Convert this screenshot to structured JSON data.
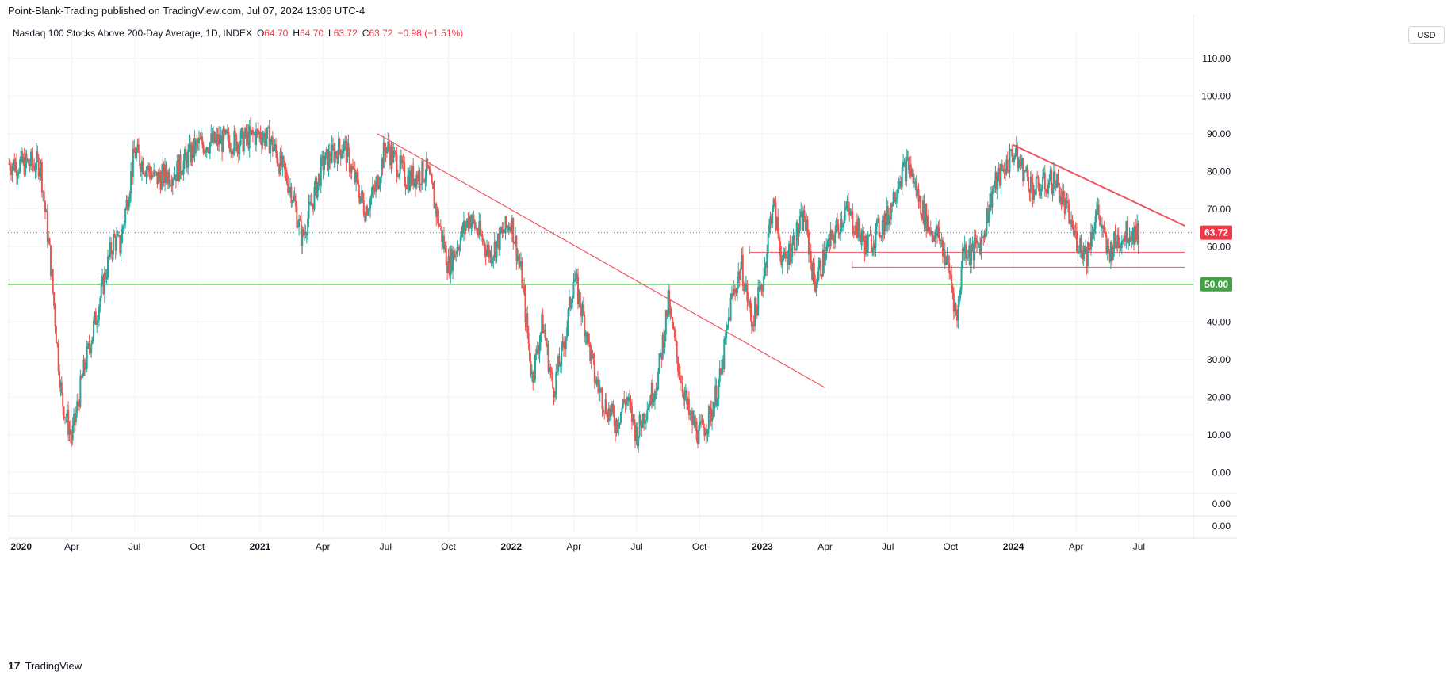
{
  "header": {
    "publisher": "Point-Blank-Trading published on TradingView.com, Jul 07, 2024 13:06 UTC-4"
  },
  "legend": {
    "symbol": "Nasdaq 100 Stocks Above 200-Day Average, 1D, INDEX",
    "open_label": "O",
    "open": "64.70",
    "high_label": "H",
    "high": "64.70",
    "low_label": "L",
    "low": "63.72",
    "close_label": "C",
    "close": "63.72",
    "change": "−0.98 (−1.51%)"
  },
  "currency_button": "USD",
  "brand": {
    "logo": "17",
    "name": "TradingView"
  },
  "colors": {
    "up": "#26a69a",
    "down": "#ef5350",
    "trend": "#f23645",
    "support": "#43a047",
    "last_price": "#f23645",
    "grid": "#f0f3fa"
  },
  "chart_data": {
    "type": "line",
    "title": "Nasdaq 100 Stocks Above 200-Day Average, 1D, INDEX",
    "xlabel": "",
    "ylabel": "",
    "ylim": [
      -5,
      115
    ],
    "y_ticks": [
      "110.00",
      "100.00",
      "90.00",
      "80.00",
      "70.00",
      "60.00",
      "40.00",
      "30.00",
      "20.00",
      "10.00",
      "0.00"
    ],
    "x_ticks": [
      {
        "label": "2020",
        "t": 0,
        "bold": true
      },
      {
        "label": "Apr",
        "t": 3,
        "bold": false
      },
      {
        "label": "Jul",
        "t": 6,
        "bold": false
      },
      {
        "label": "Oct",
        "t": 9,
        "bold": false
      },
      {
        "label": "2021",
        "t": 12,
        "bold": true
      },
      {
        "label": "Apr",
        "t": 15,
        "bold": false
      },
      {
        "label": "Jul",
        "t": 18,
        "bold": false
      },
      {
        "label": "Oct",
        "t": 21,
        "bold": false
      },
      {
        "label": "2022",
        "t": 24,
        "bold": true
      },
      {
        "label": "Apr",
        "t": 27,
        "bold": false
      },
      {
        "label": "Jul",
        "t": 30,
        "bold": false
      },
      {
        "label": "Oct",
        "t": 33,
        "bold": false
      },
      {
        "label": "2023",
        "t": 36,
        "bold": true
      },
      {
        "label": "Apr",
        "t": 39,
        "bold": false
      },
      {
        "label": "Jul",
        "t": 42,
        "bold": false
      },
      {
        "label": "Oct",
        "t": 45,
        "bold": false
      },
      {
        "label": "2024",
        "t": 48,
        "bold": true
      },
      {
        "label": "Apr",
        "t": 51,
        "bold": false
      },
      {
        "label": "Jul",
        "t": 54,
        "bold": false
      }
    ],
    "series": [
      {
        "name": "Nasdaq 100 Stocks Above 200-Day Average",
        "t": [
          0,
          1.5,
          2.0,
          2.5,
          3.0,
          3.5,
          4.5,
          5.0,
          5.3,
          6.0,
          7.0,
          8.0,
          9.0,
          10.0,
          11.0,
          12.0,
          12.5,
          13.5,
          14.0,
          15.0,
          16.0,
          17.0,
          17.5,
          18.0,
          19.0,
          20.0,
          21.0,
          22.0,
          23.0,
          24.0,
          24.5,
          25.0,
          25.5,
          26.0,
          26.5,
          27.0,
          27.5,
          28.0,
          28.5,
          29.0,
          29.5,
          30.0,
          30.5,
          31.0,
          31.5,
          32.0,
          32.5,
          33.0,
          33.5,
          34.0,
          34.5,
          35.0,
          35.5,
          36.0,
          36.5,
          37.0,
          38.0,
          38.5,
          39.0,
          40.0,
          41.0,
          42.0,
          42.5,
          43.0,
          43.5,
          44.0,
          44.5,
          45.0,
          45.3,
          45.6,
          46.0,
          46.5,
          47.0,
          48.0,
          48.5,
          49.0,
          50.0,
          51.0,
          51.5,
          52.0,
          52.5,
          53.0,
          53.5,
          54.0
        ],
        "values": [
          82,
          82,
          55,
          20,
          9,
          25,
          50,
          62,
          60,
          85,
          78,
          80,
          87,
          88,
          88,
          90,
          88,
          75,
          62,
          82,
          87,
          70,
          75,
          87,
          78,
          80,
          55,
          68,
          58,
          67,
          52,
          25,
          40,
          22,
          33,
          52,
          40,
          25,
          18,
          13,
          20,
          10,
          18,
          25,
          45,
          28,
          15,
          10,
          15,
          25,
          45,
          55,
          40,
          50,
          72,
          55,
          68,
          50,
          58,
          70,
          60,
          68,
          78,
          82,
          72,
          65,
          62,
          52,
          40,
          60,
          58,
          62,
          75,
          85,
          80,
          75,
          78,
          62,
          58,
          70,
          58,
          62,
          64,
          63.72
        ]
      }
    ],
    "trendlines": [
      {
        "t1": 17.6,
        "v1": 90,
        "t2": 39.0,
        "v2": 22.5
      },
      {
        "t1": 48.0,
        "v1": 87,
        "t2": 56.2,
        "v2": 65.5
      }
    ],
    "support_lines": [
      {
        "t1": 35.4,
        "t2": 56.2,
        "v": 58.5
      },
      {
        "t1": 40.3,
        "t2": 56.2,
        "v": 54.5
      }
    ],
    "horizontal_line": {
      "value": 50.0,
      "label": "50.00"
    },
    "last_price": {
      "value": 63.72,
      "label": "63.72"
    },
    "sub_panes": [
      {
        "label": "0.00"
      },
      {
        "label": "0.00"
      }
    ]
  }
}
